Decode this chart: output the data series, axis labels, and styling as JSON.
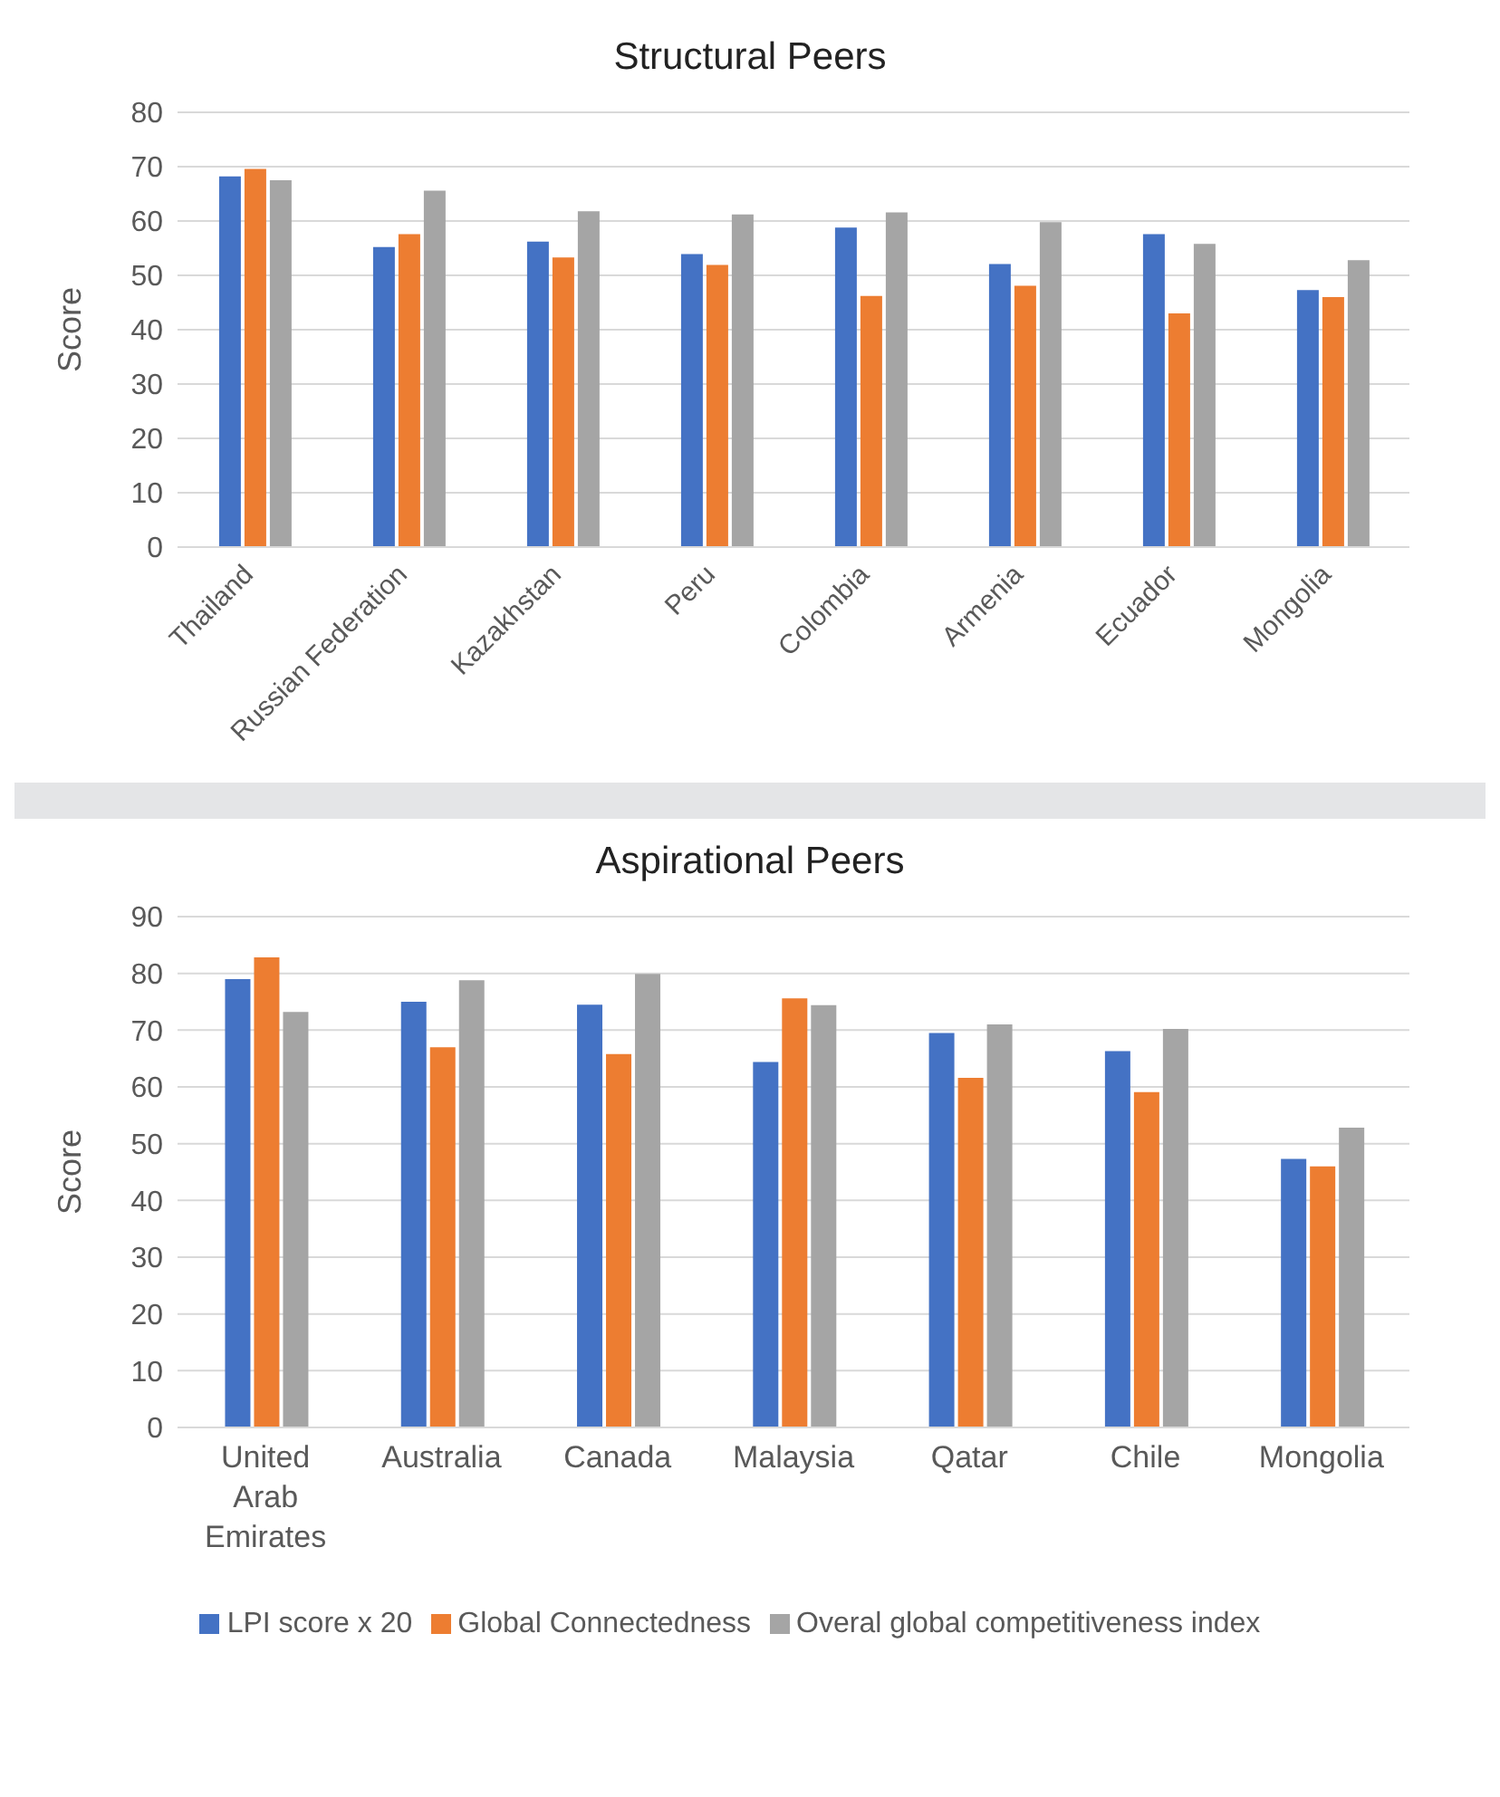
{
  "chart_data": [
    {
      "type": "bar",
      "title": "Structural Peers",
      "ylabel": "Score",
      "categories": [
        "Thailand",
        "Russian Federation",
        "Kazakhstan",
        "Peru",
        "Colombia",
        "Armenia",
        "Ecuador",
        "Mongolia"
      ],
      "series": [
        {
          "color": "#4472c4",
          "values": [
            68.2,
            55.2,
            56.2,
            53.9,
            58.8,
            52.1,
            57.6,
            47.3
          ]
        },
        {
          "color": "#ed7d31",
          "values": [
            69.6,
            57.6,
            53.3,
            51.9,
            46.2,
            48.1,
            43,
            46
          ]
        },
        {
          "color": "#a5a5a5",
          "values": [
            67.5,
            65.6,
            61.8,
            61.2,
            61.6,
            59.8,
            55.8,
            52.8
          ]
        }
      ],
      "ylim": [
        0,
        80
      ],
      "yticks": [
        0,
        10,
        20,
        30,
        40,
        50,
        60,
        70,
        80
      ],
      "grid": "y"
    },
    {
      "type": "bar",
      "title": "Aspirational Peers",
      "ylabel": "Score",
      "categories": [
        "United Arab Emirates",
        "Australia",
        "Canada",
        "Malaysia",
        "Qatar",
        "Chile",
        "Mongolia"
      ],
      "series": [
        {
          "name": "LPI score x 20",
          "color": "#4472c4",
          "values": [
            79,
            75,
            74.5,
            64.4,
            69.5,
            66.3,
            47.3
          ]
        },
        {
          "name": "Global Connectedness",
          "color": "#ed7d31",
          "values": [
            82.8,
            67,
            65.8,
            75.6,
            61.6,
            59.1,
            46
          ]
        },
        {
          "name": "Overal global competitiveness index",
          "color": "#a5a5a5",
          "values": [
            73.2,
            78.8,
            79.9,
            74.4,
            71,
            70.2,
            52.8
          ]
        }
      ],
      "ylim": [
        0,
        90
      ],
      "yticks": [
        0,
        10,
        20,
        30,
        40,
        50,
        60,
        70,
        80,
        90
      ],
      "grid": "y",
      "legend": "bottom"
    }
  ]
}
